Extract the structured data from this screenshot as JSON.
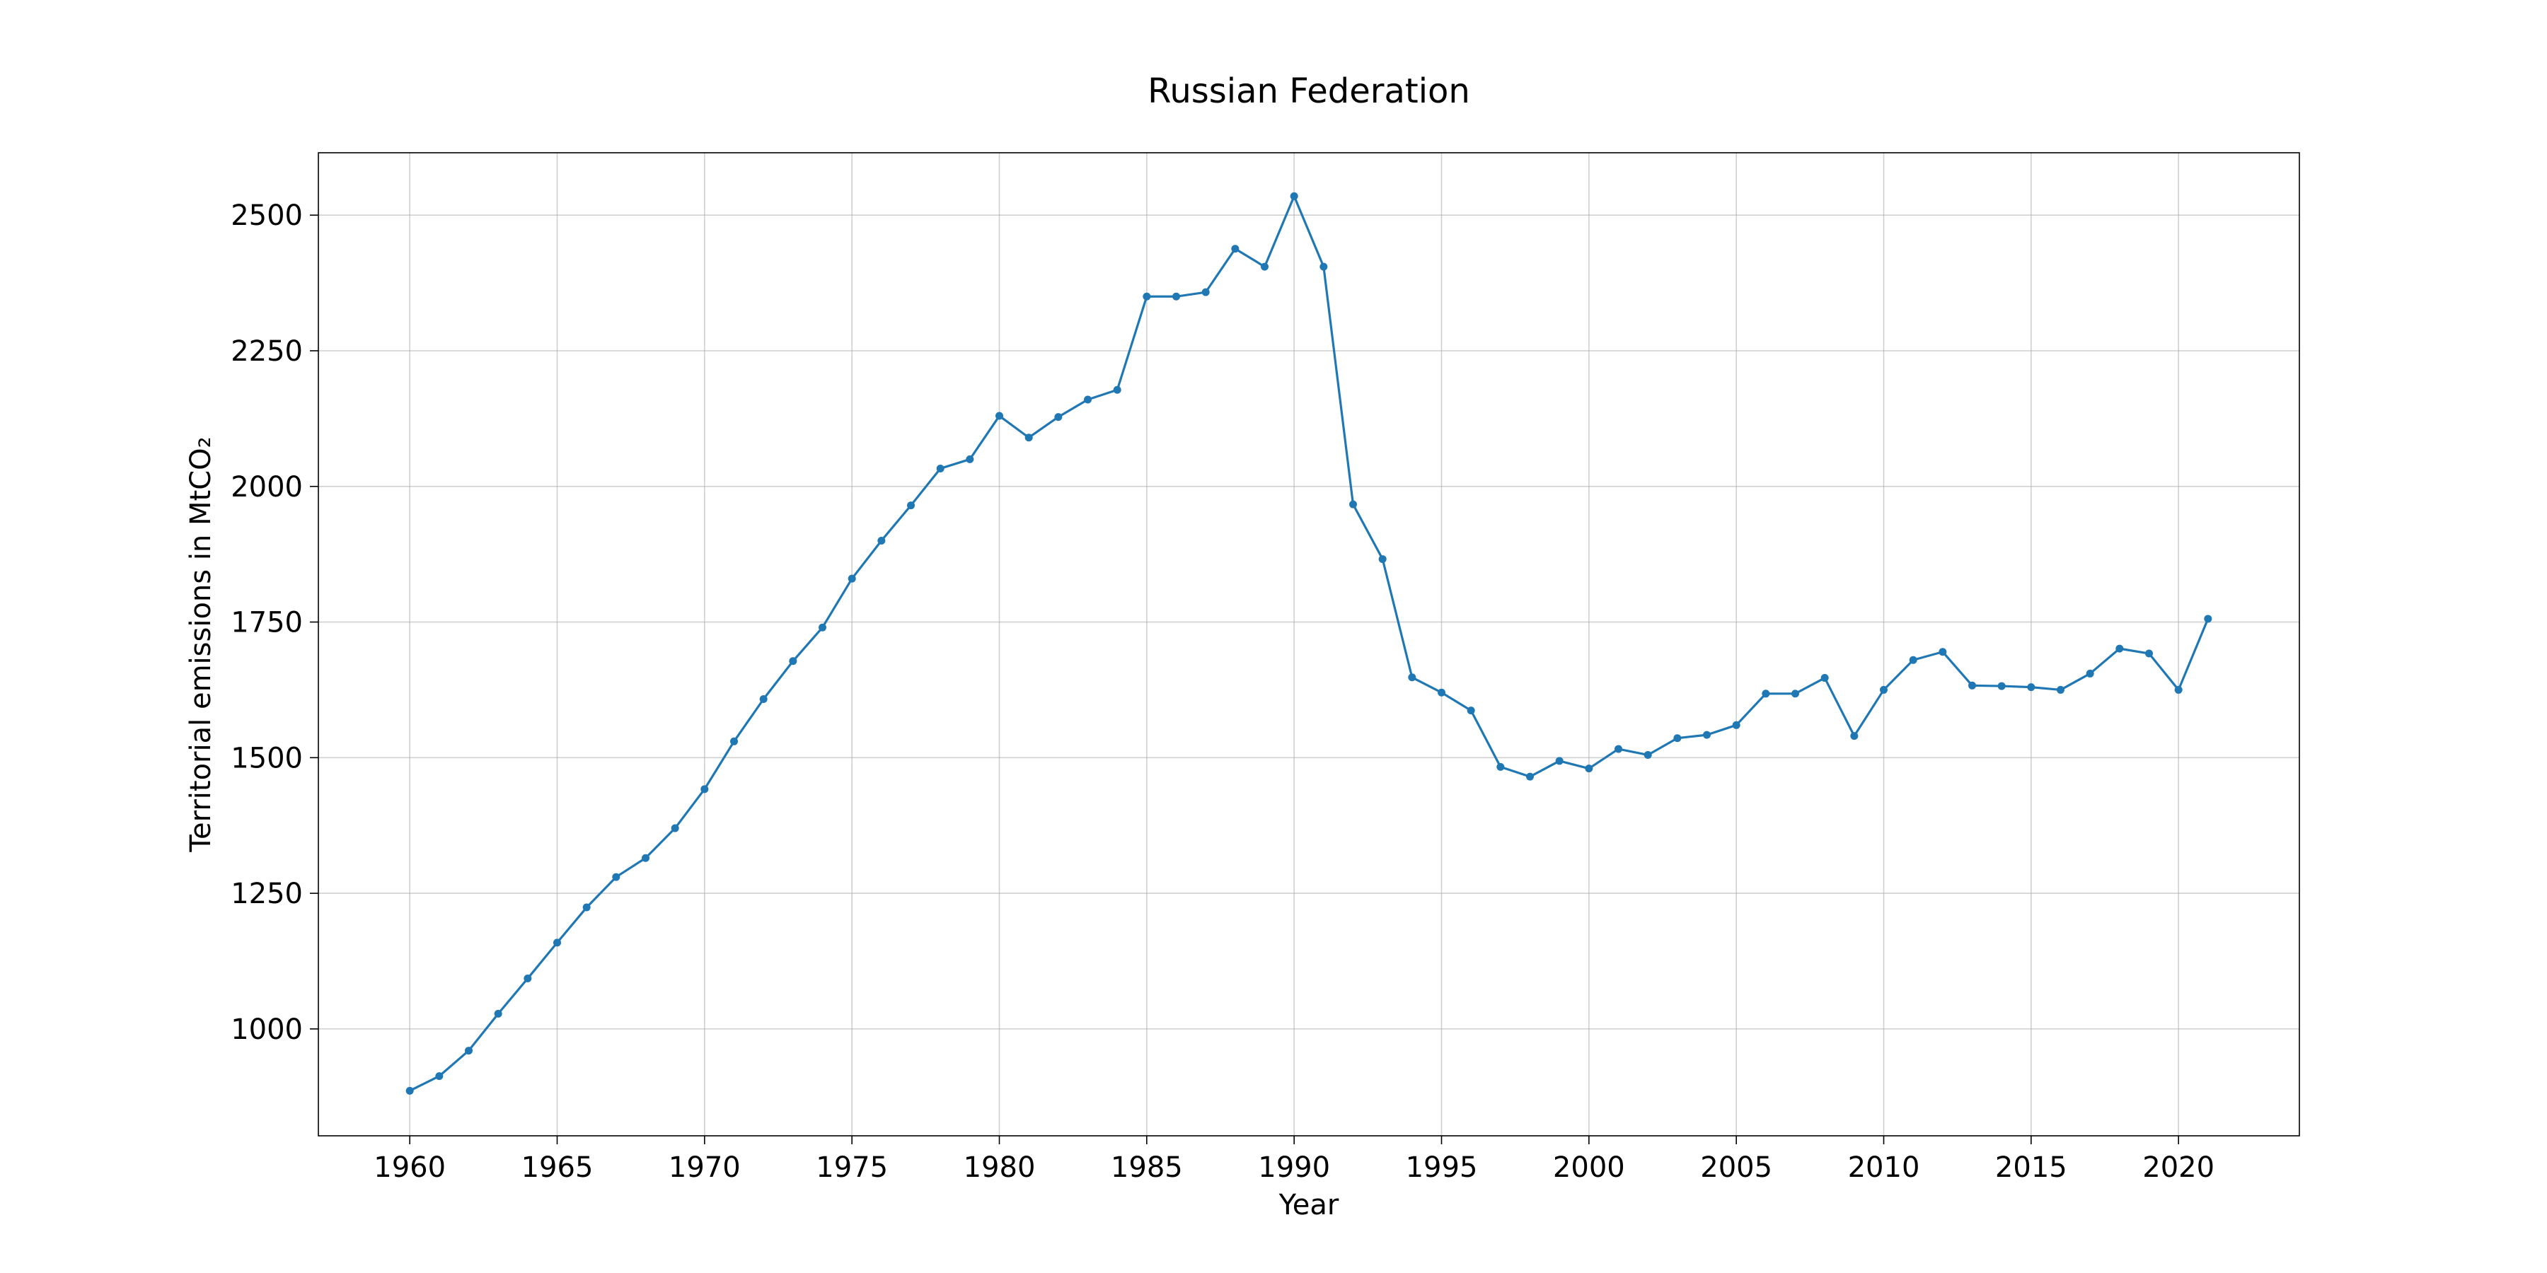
{
  "colors": {
    "series": "#1f77b4",
    "grid": "#b0b0b0",
    "axes": "#000000",
    "background": "#ffffff"
  },
  "chart_data": {
    "type": "line",
    "title": "Russian Federation",
    "xlabel": "Year",
    "ylabel": "Territorial emissions in MtCO₂",
    "xlim": [
      1956.9,
      2024.1
    ],
    "ylim": [
      803,
      2615
    ],
    "x_ticks": [
      1960,
      1965,
      1970,
      1975,
      1980,
      1985,
      1990,
      1995,
      2000,
      2005,
      2010,
      2015,
      2020
    ],
    "y_ticks": [
      1000,
      1250,
      1500,
      1750,
      2000,
      2250,
      2500
    ],
    "grid": true,
    "marker": "circle",
    "series": [
      {
        "x": [
          1960,
          1961,
          1962,
          1963,
          1964,
          1965,
          1966,
          1967,
          1968,
          1969,
          1970,
          1971,
          1972,
          1973,
          1974,
          1975,
          1976,
          1977,
          1978,
          1979,
          1980,
          1981,
          1982,
          1983,
          1984,
          1985,
          1986,
          1987,
          1988,
          1989,
          1990,
          1991,
          1992,
          1993,
          1994,
          1995,
          1996,
          1997,
          1998,
          1999,
          2000,
          2001,
          2002,
          2003,
          2004,
          2005,
          2006,
          2007,
          2008,
          2009,
          2010,
          2011,
          2012,
          2013,
          2014,
          2015,
          2016,
          2017,
          2018,
          2019,
          2020,
          2021
        ],
        "values": [
          886,
          913,
          960,
          1028,
          1093,
          1159,
          1224,
          1280,
          1315,
          1370,
          1442,
          1530,
          1608,
          1678,
          1740,
          1830,
          1900,
          1965,
          2033,
          2050,
          2130,
          2090,
          2128,
          2160,
          2178,
          2350,
          2350,
          2358,
          2438,
          2405,
          2535,
          2405,
          1967,
          1866,
          1648,
          1620,
          1587,
          1483,
          1465,
          1494,
          1480,
          1516,
          1505,
          1536,
          1542,
          1560,
          1618,
          1618,
          1647,
          1540,
          1625,
          1680,
          1695,
          1633,
          1632,
          1630,
          1625,
          1655,
          1701,
          1692,
          1625,
          1756
        ]
      }
    ]
  }
}
